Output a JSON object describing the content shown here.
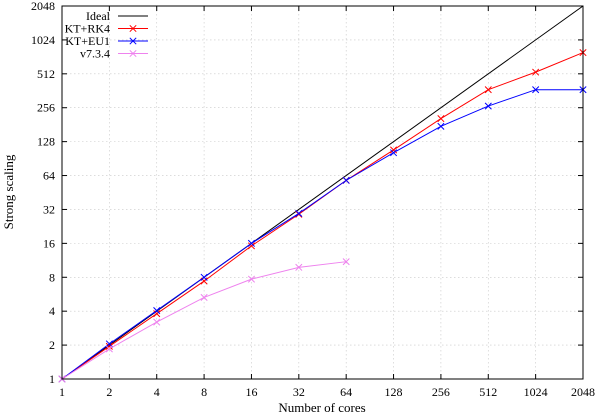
{
  "chart_data": {
    "type": "line",
    "xlabel": "Number of cores",
    "ylabel": "Strong scaling",
    "xscale": "log2",
    "yscale": "log2",
    "xlim": [
      1,
      2048
    ],
    "ylim": [
      1,
      2048
    ],
    "xticks": [
      "1",
      "2",
      "4",
      "8",
      "16",
      "32",
      "64",
      "128",
      "256",
      "512",
      "1024",
      "2048"
    ],
    "yticks": [
      "1",
      "2",
      "4",
      "8",
      "16",
      "32",
      "64",
      "128",
      "256",
      "512",
      "1024",
      "2048"
    ],
    "grid": true,
    "legend_position": "top-left",
    "series": [
      {
        "name": "Ideal",
        "color": "#000000",
        "marker": "none",
        "x": [
          1,
          2048
        ],
        "y": [
          1,
          2048
        ]
      },
      {
        "name": "KT+RK4",
        "color": "#ff0000",
        "marker": "x",
        "x": [
          1,
          2,
          4,
          8,
          16,
          32,
          64,
          128,
          256,
          512,
          1024,
          2048
        ],
        "y": [
          1,
          1.95,
          3.8,
          7.4,
          15.2,
          29,
          58,
          108,
          205,
          370,
          530,
          790
        ]
      },
      {
        "name": "KT+EU1",
        "color": "#0000ff",
        "marker": "x",
        "x": [
          1,
          2,
          4,
          8,
          16,
          32,
          64,
          128,
          256,
          512,
          1024,
          2048
        ],
        "y": [
          1,
          2.05,
          4.05,
          8.0,
          16.0,
          29.5,
          58,
          102,
          175,
          265,
          370,
          370
        ]
      },
      {
        "name": "v7.3.4",
        "color": "#ee82ee",
        "marker": "x",
        "x": [
          1,
          2,
          4,
          8,
          16,
          32,
          64
        ],
        "y": [
          1,
          1.85,
          3.2,
          5.3,
          7.7,
          9.8,
          11.0
        ]
      }
    ]
  }
}
